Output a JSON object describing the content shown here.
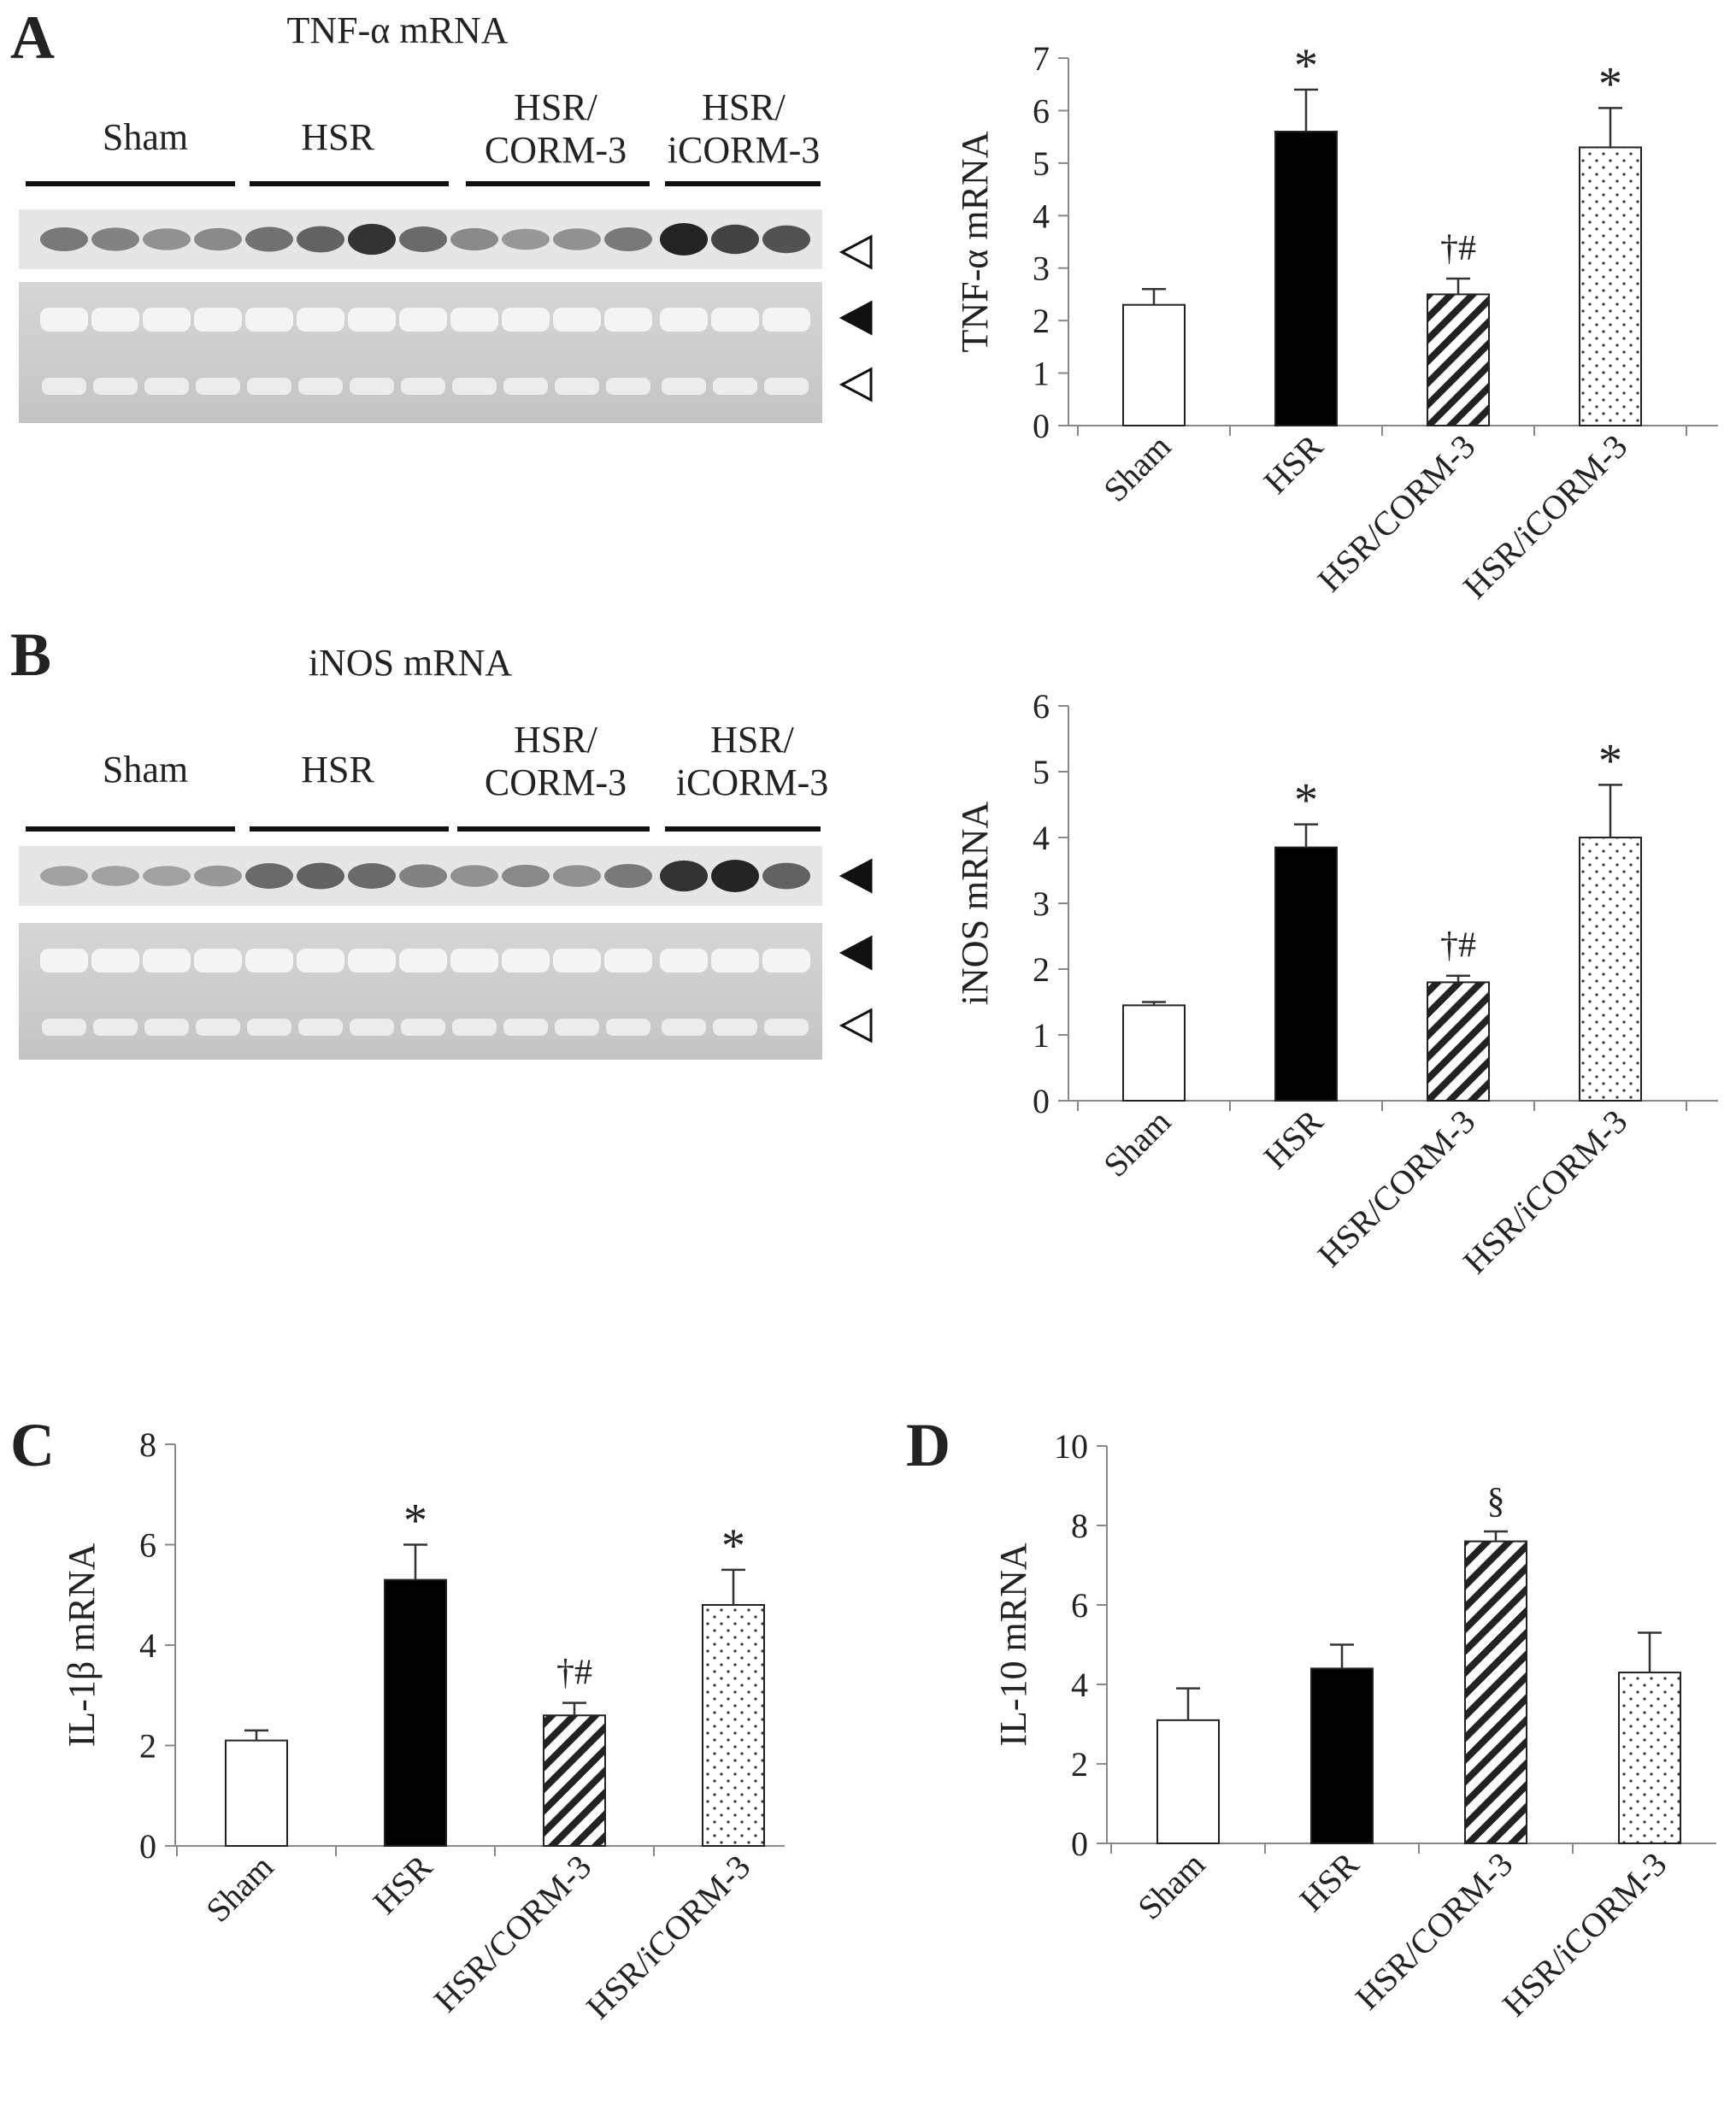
{
  "panels": {
    "A": {
      "letter": "A",
      "blot_title": "TNF-α mRNA",
      "groups": [
        "Sham",
        "HSR",
        "HSR/\nCORM-3",
        "HSR/\niCORM-3"
      ]
    },
    "B": {
      "letter": "B",
      "blot_title": "iNOS mRNA",
      "groups": [
        "Sham",
        "HSR",
        "HSR/\nCORM-3",
        "HSR/\niCORM-3"
      ]
    },
    "C": {
      "letter": "C"
    },
    "D": {
      "letter": "D"
    }
  },
  "colors": {
    "ink": "#222222",
    "axis": "#888888",
    "bar_outline": "#222222",
    "gel_background": "#cfcfcf"
  },
  "icons": {
    "filled_marker": "black-left-triangle-icon",
    "open_marker": "open-left-triangle-icon"
  },
  "chart_data": [
    {
      "id": "A",
      "type": "bar",
      "categories": [
        "Sham",
        "HSR",
        "HSR/CORM-3",
        "HSR/iCORM-3"
      ],
      "values": [
        2.3,
        5.6,
        2.5,
        5.3
      ],
      "errors": [
        0.3,
        0.8,
        0.3,
        0.75
      ],
      "annotations": [
        "",
        "*",
        "†#",
        "*"
      ],
      "fills": [
        "white",
        "black",
        "hatch",
        "dots"
      ],
      "ylabel": "TNF-α mRNA",
      "ylim": [
        0,
        7
      ],
      "yticks": [
        "0",
        "1",
        "2",
        "3",
        "4",
        "5",
        "6",
        "7"
      ],
      "grid": false
    },
    {
      "id": "B",
      "type": "bar",
      "categories": [
        "Sham",
        "HSR",
        "HSR/CORM-3",
        "HSR/iCORM-3"
      ],
      "values": [
        1.45,
        3.85,
        1.8,
        4.0
      ],
      "errors": [
        0.05,
        0.35,
        0.1,
        0.8
      ],
      "annotations": [
        "",
        "*",
        "†#",
        "*"
      ],
      "fills": [
        "white",
        "black",
        "hatch",
        "dots"
      ],
      "ylabel": "iNOS mRNA",
      "ylim": [
        0,
        6
      ],
      "yticks": [
        "0",
        "1",
        "2",
        "3",
        "4",
        "5",
        "6"
      ],
      "grid": false
    },
    {
      "id": "C",
      "type": "bar",
      "categories": [
        "Sham",
        "HSR",
        "HSR/CORM-3",
        "HSR/iCORM-3"
      ],
      "values": [
        2.1,
        5.3,
        2.6,
        4.8
      ],
      "errors": [
        0.2,
        0.7,
        0.25,
        0.7
      ],
      "annotations": [
        "",
        "*",
        "†#",
        "*"
      ],
      "fills": [
        "white",
        "black",
        "hatch",
        "dots"
      ],
      "ylabel": "IL-1β mRNA",
      "ylim": [
        0,
        8
      ],
      "yticks": [
        "0",
        "2",
        "4",
        "6",
        "8"
      ],
      "grid": false
    },
    {
      "id": "D",
      "type": "bar",
      "categories": [
        "Sham",
        "HSR",
        "HSR/CORM-3",
        "HSR/iCORM-3"
      ],
      "values": [
        3.1,
        4.4,
        7.6,
        4.3
      ],
      "errors": [
        0.8,
        0.6,
        0.25,
        1.0
      ],
      "annotations": [
        "",
        "",
        "§",
        ""
      ],
      "fills": [
        "white",
        "black",
        "hatch",
        "dots"
      ],
      "ylabel": "IL-10 mRNA",
      "ylim": [
        0,
        10
      ],
      "yticks": [
        "0",
        "2",
        "4",
        "6",
        "8",
        "10"
      ],
      "grid": false
    }
  ]
}
